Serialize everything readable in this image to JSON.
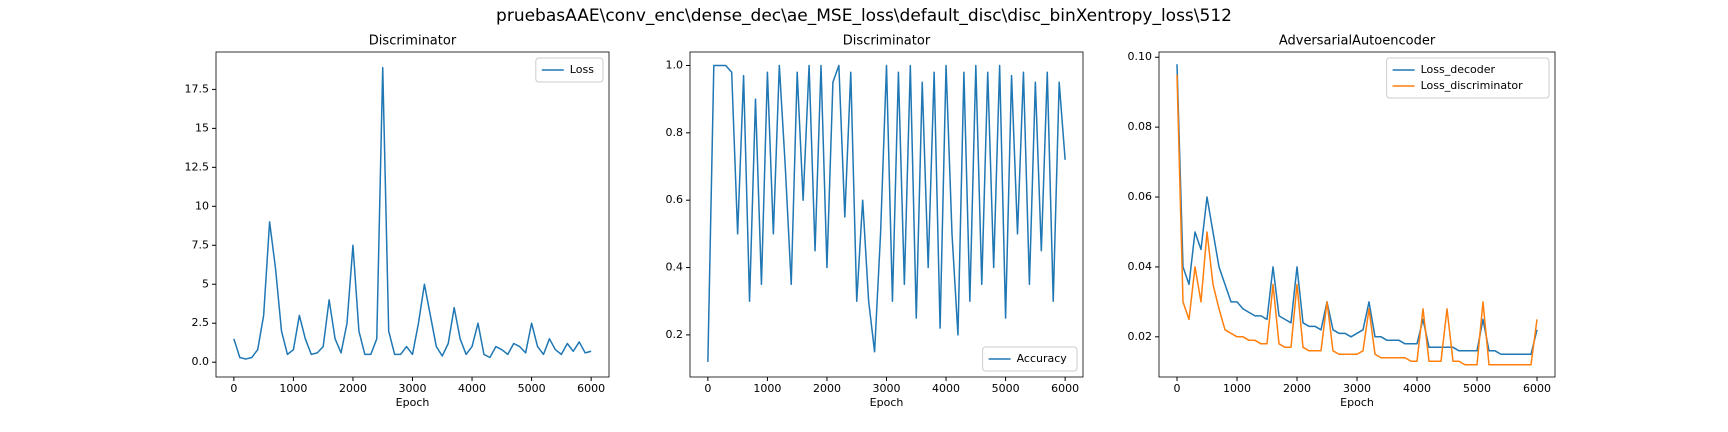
{
  "title": "pruebasAAE\\conv_enc\\dense_dec\\ae_MSE_loss\\default_disc\\disc_binXentropy_loss\\512",
  "chart_data": [
    {
      "type": "line",
      "title": "Discriminator",
      "xlabel": "Epoch",
      "legend": "upper right",
      "x": [
        0,
        100,
        200,
        300,
        400,
        500,
        600,
        700,
        800,
        900,
        1000,
        1100,
        1200,
        1300,
        1400,
        1500,
        1600,
        1700,
        1800,
        1900,
        2000,
        2100,
        2200,
        2300,
        2400,
        2500,
        2600,
        2700,
        2800,
        2900,
        3000,
        3100,
        3200,
        3300,
        3400,
        3500,
        3600,
        3700,
        3800,
        3900,
        4000,
        4100,
        4200,
        4300,
        4400,
        4500,
        4600,
        4700,
        4800,
        4900,
        5000,
        5100,
        5200,
        5300,
        5400,
        5500,
        5600,
        5700,
        5800,
        5900,
        6000
      ],
      "series": [
        {
          "name": "Loss",
          "color": "#1f77b4",
          "values": [
            1.5,
            0.3,
            0.2,
            0.3,
            0.8,
            3,
            9,
            6,
            2,
            0.5,
            0.8,
            3,
            1.5,
            0.5,
            0.6,
            1,
            4,
            1.5,
            0.6,
            2.5,
            7.5,
            2,
            0.5,
            0.5,
            1.5,
            18.9,
            2,
            0.5,
            0.5,
            1,
            0.5,
            2.5,
            5,
            3,
            1,
            0.4,
            1.2,
            3.5,
            1.5,
            0.5,
            1,
            2.5,
            0.5,
            0.3,
            1,
            0.8,
            0.5,
            1.2,
            1,
            0.6,
            2.5,
            1,
            0.5,
            1.5,
            0.8,
            0.5,
            1.2,
            0.7,
            1.3,
            0.6,
            0.7
          ]
        }
      ],
      "xlim": [
        -300,
        6300
      ],
      "xticks": [
        0,
        1000,
        2000,
        3000,
        4000,
        5000,
        6000
      ],
      "ylim": [
        -0.95,
        19.9
      ],
      "yticks": [
        {
          "value": 0,
          "label": "0.0"
        },
        2.5,
        5,
        7.5,
        10,
        12.5,
        15,
        17.5
      ]
    },
    {
      "type": "line",
      "title": "Discriminator",
      "xlabel": "Epoch",
      "legend": "lower right",
      "x": [
        0,
        100,
        200,
        300,
        400,
        500,
        600,
        700,
        800,
        900,
        1000,
        1100,
        1200,
        1300,
        1400,
        1500,
        1600,
        1700,
        1800,
        1900,
        2000,
        2100,
        2200,
        2300,
        2400,
        2500,
        2600,
        2700,
        2800,
        2900,
        3000,
        3100,
        3200,
        3300,
        3400,
        3500,
        3600,
        3700,
        3800,
        3900,
        4000,
        4100,
        4200,
        4300,
        4400,
        4500,
        4600,
        4700,
        4800,
        4900,
        5000,
        5100,
        5200,
        5300,
        5400,
        5500,
        5600,
        5700,
        5800,
        5900,
        6000
      ],
      "series": [
        {
          "name": "Accuracy",
          "color": "#1f77b4",
          "values": [
            0.12,
            1,
            1,
            1,
            0.98,
            0.5,
            0.97,
            0.3,
            0.9,
            0.35,
            0.98,
            0.5,
            1,
            0.7,
            0.35,
            0.98,
            0.6,
            1,
            0.45,
            1,
            0.4,
            0.95,
            1,
            0.55,
            0.98,
            0.3,
            0.6,
            0.3,
            0.15,
            0.5,
            1,
            0.3,
            0.98,
            0.35,
            1,
            0.25,
            0.95,
            0.4,
            0.98,
            0.22,
            1,
            0.5,
            0.2,
            0.98,
            0.3,
            1,
            0.35,
            0.98,
            0.4,
            1,
            0.25,
            0.97,
            0.5,
            0.98,
            0.35,
            0.95,
            0.45,
            0.98,
            0.3,
            0.95,
            0.72
          ]
        }
      ],
      "xlim": [
        -300,
        6300
      ],
      "xticks": [
        0,
        1000,
        2000,
        3000,
        4000,
        5000,
        6000
      ],
      "ylim": [
        0.075,
        1.04
      ],
      "yticks": [
        0.2,
        0.4,
        0.6,
        0.8,
        {
          "value": 1,
          "label": "1.0"
        }
      ]
    },
    {
      "type": "line",
      "title": "AdversarialAutoencoder",
      "xlabel": "Epoch",
      "legend": "upper right",
      "x": [
        0,
        100,
        200,
        300,
        400,
        500,
        600,
        700,
        800,
        900,
        1000,
        1100,
        1200,
        1300,
        1400,
        1500,
        1600,
        1700,
        1800,
        1900,
        2000,
        2100,
        2200,
        2300,
        2400,
        2500,
        2600,
        2700,
        2800,
        2900,
        3000,
        3100,
        3200,
        3300,
        3400,
        3500,
        3600,
        3700,
        3800,
        3900,
        4000,
        4100,
        4200,
        4300,
        4400,
        4500,
        4600,
        4700,
        4800,
        4900,
        5000,
        5100,
        5200,
        5300,
        5400,
        5500,
        5600,
        5700,
        5800,
        5900,
        6000
      ],
      "series": [
        {
          "name": "Loss_decoder",
          "color": "#1f77b4",
          "values": [
            0.098,
            0.04,
            0.035,
            0.05,
            0.045,
            0.06,
            0.05,
            0.04,
            0.035,
            0.03,
            0.03,
            0.028,
            0.027,
            0.026,
            0.026,
            0.025,
            0.04,
            0.026,
            0.025,
            0.024,
            0.04,
            0.024,
            0.023,
            0.023,
            0.022,
            0.03,
            0.022,
            0.021,
            0.021,
            0.02,
            0.021,
            0.022,
            0.03,
            0.02,
            0.02,
            0.019,
            0.019,
            0.019,
            0.018,
            0.018,
            0.018,
            0.025,
            0.017,
            0.017,
            0.017,
            0.017,
            0.017,
            0.016,
            0.016,
            0.016,
            0.016,
            0.025,
            0.016,
            0.016,
            0.015,
            0.015,
            0.015,
            0.015,
            0.015,
            0.015,
            0.022
          ]
        },
        {
          "name": "Loss_discriminator",
          "color": "#ff7f0e",
          "values": [
            0.095,
            0.03,
            0.025,
            0.04,
            0.03,
            0.05,
            0.035,
            0.028,
            0.022,
            0.021,
            0.02,
            0.02,
            0.019,
            0.019,
            0.018,
            0.018,
            0.035,
            0.018,
            0.017,
            0.017,
            0.035,
            0.017,
            0.016,
            0.016,
            0.016,
            0.03,
            0.016,
            0.015,
            0.015,
            0.015,
            0.015,
            0.016,
            0.028,
            0.015,
            0.014,
            0.014,
            0.014,
            0.014,
            0.014,
            0.013,
            0.013,
            0.028,
            0.013,
            0.013,
            0.013,
            0.028,
            0.013,
            0.013,
            0.012,
            0.012,
            0.012,
            0.03,
            0.012,
            0.012,
            0.012,
            0.012,
            0.012,
            0.012,
            0.012,
            0.012,
            0.025
          ]
        }
      ],
      "xlim": [
        -300,
        6300
      ],
      "xticks": [
        0,
        1000,
        2000,
        3000,
        4000,
        5000,
        6000
      ],
      "ylim": [
        0.0085,
        0.1015
      ],
      "yticks": [
        0.02,
        0.04,
        0.06,
        0.08,
        {
          "value": 0.1,
          "label": "0.10"
        }
      ]
    }
  ]
}
